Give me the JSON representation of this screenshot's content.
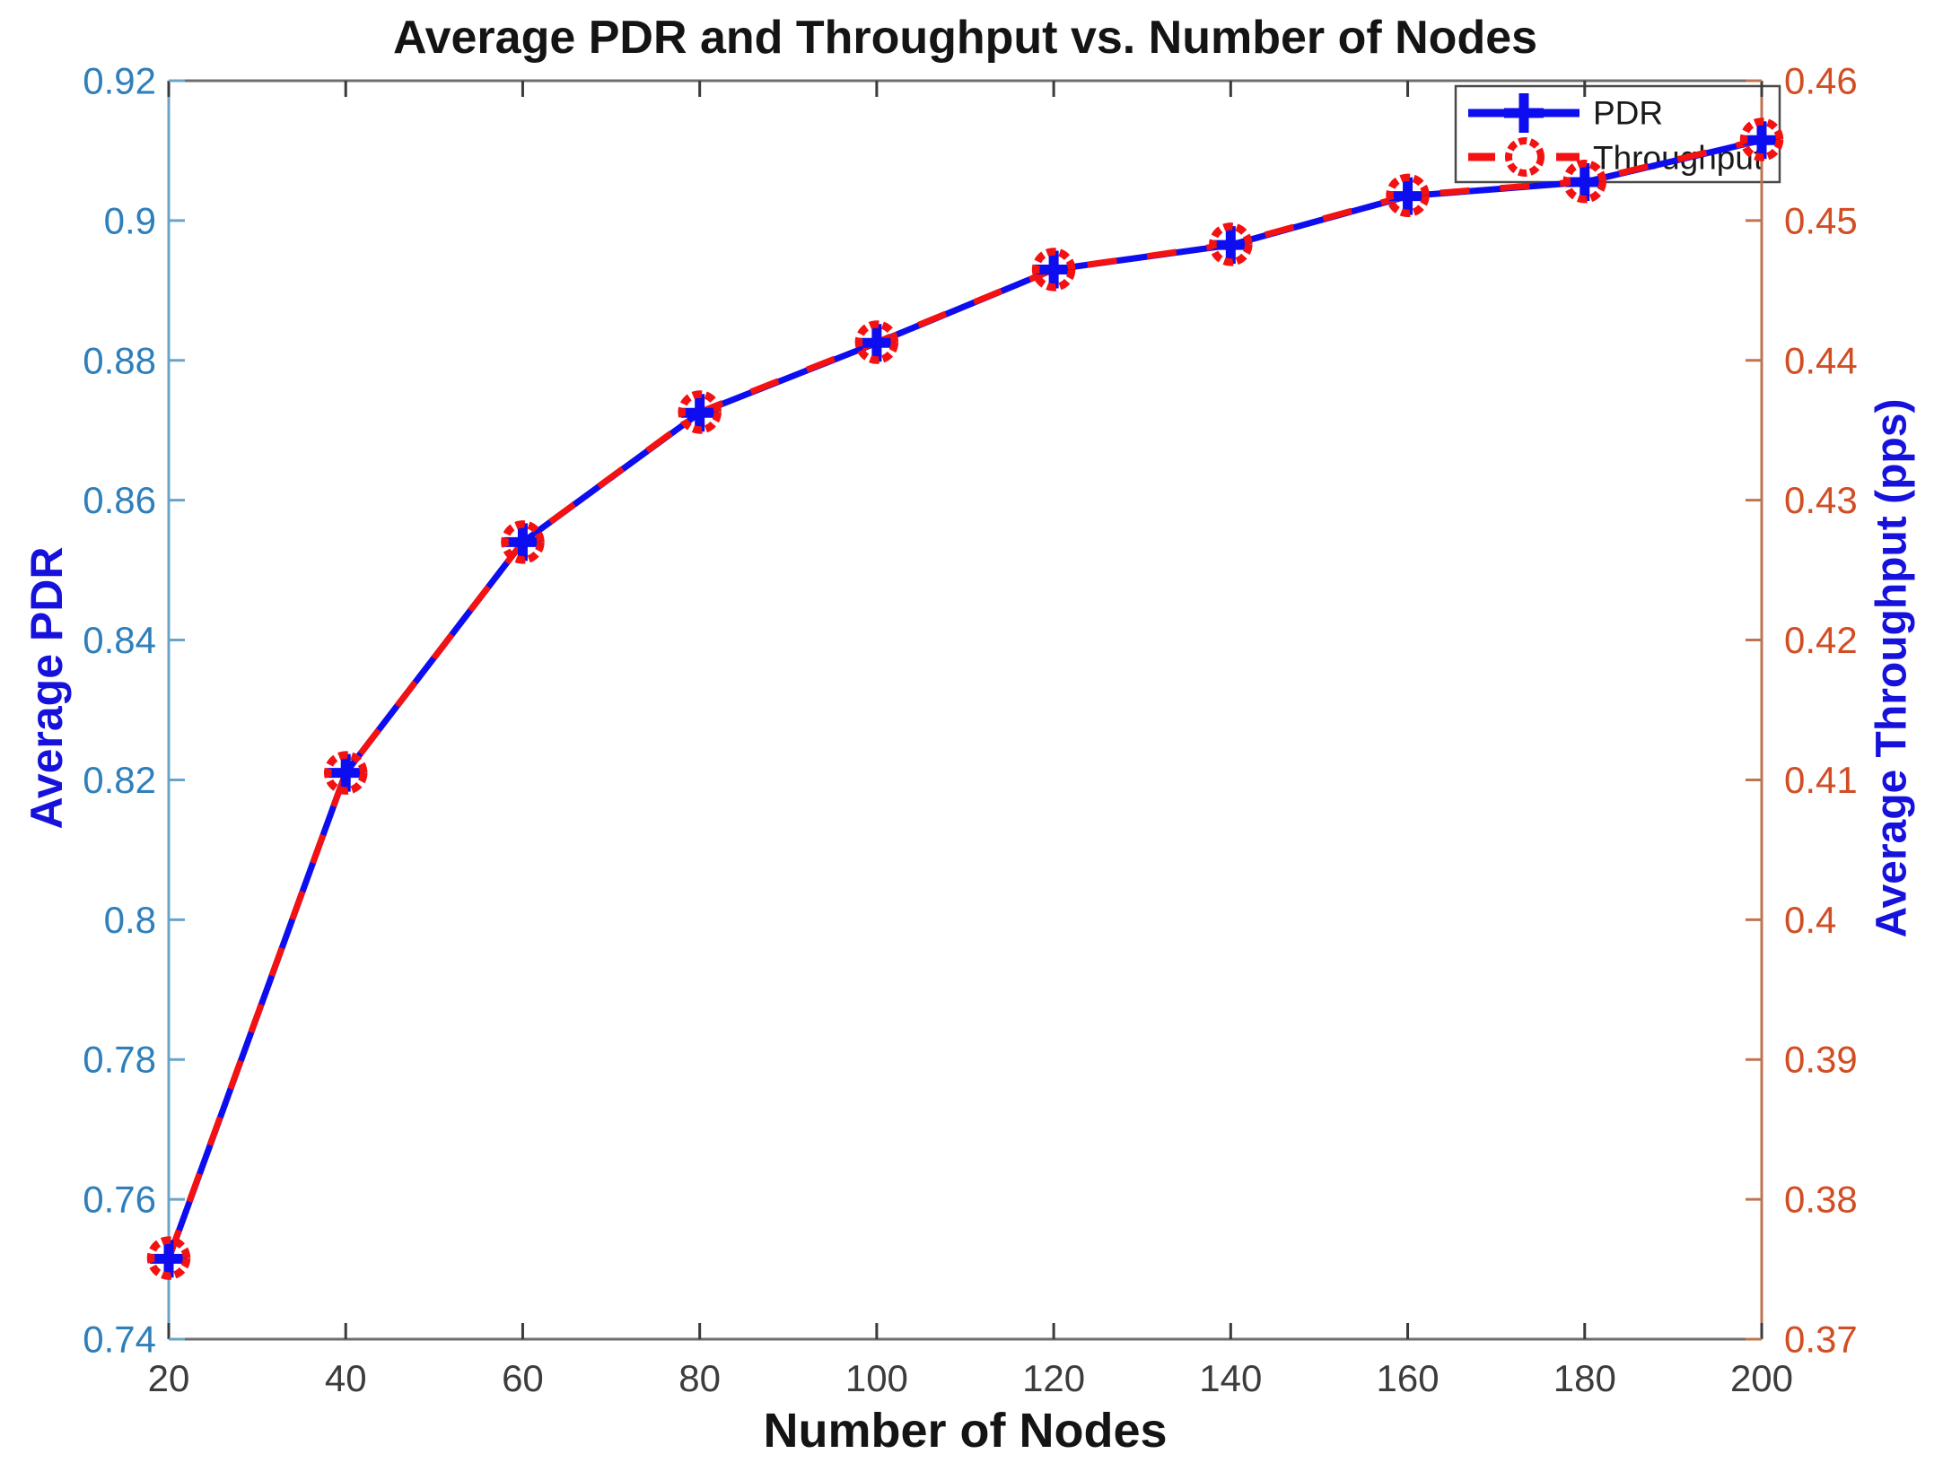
{
  "chart_data": {
    "type": "line",
    "title": "Average PDR and Throughput vs. Number of Nodes",
    "xlabel": "Number of Nodes",
    "ylabel_left": "Average PDR",
    "ylabel_right": "Average Throughput (pps)",
    "x": [
      20,
      40,
      60,
      80,
      100,
      120,
      140,
      160,
      180,
      200
    ],
    "series": [
      {
        "name": "PDR",
        "axis": "left",
        "color": "#0d0df0",
        "line_style": "solid",
        "marker": "plus",
        "values": [
          0.7515,
          0.821,
          0.854,
          0.8725,
          0.8825,
          0.893,
          0.8965,
          0.9035,
          0.9055,
          0.9115
        ]
      },
      {
        "name": "Throughput",
        "axis": "right",
        "color": "#f31111",
        "line_style": "dashed",
        "marker": "circle",
        "values": [
          0.3758,
          0.4105,
          0.427,
          0.4363,
          0.4413,
          0.4465,
          0.4483,
          0.4518,
          0.4528,
          0.4558
        ]
      }
    ],
    "x_axis": {
      "min": 20,
      "max": 200,
      "tick_values": [
        20,
        40,
        60,
        80,
        100,
        120,
        140,
        160,
        180,
        200
      ],
      "tick_labels": [
        "20",
        "40",
        "60",
        "80",
        "100",
        "120",
        "140",
        "160",
        "180",
        "200"
      ]
    },
    "left_axis": {
      "min": 0.74,
      "max": 0.92,
      "tick_values": [
        0.74,
        0.76,
        0.78,
        0.8,
        0.82,
        0.84,
        0.86,
        0.88,
        0.9,
        0.92
      ],
      "tick_labels": [
        "0.74",
        "0.76",
        "0.78",
        "0.8",
        "0.82",
        "0.84",
        "0.86",
        "0.88",
        "0.9",
        "0.92"
      ]
    },
    "right_axis": {
      "min": 0.37,
      "max": 0.46,
      "tick_values": [
        0.37,
        0.38,
        0.39,
        0.4,
        0.41,
        0.42,
        0.43,
        0.44,
        0.45,
        0.46
      ],
      "tick_labels": [
        "0.37",
        "0.38",
        "0.39",
        "0.4",
        "0.41",
        "0.42",
        "0.43",
        "0.44",
        "0.45",
        "0.46"
      ]
    },
    "legend": {
      "position": "top-right",
      "entries": [
        "PDR",
        "Throughput"
      ]
    },
    "grid": false
  },
  "colors": {
    "background": "#ffffff",
    "pdr_blue": "#0d0df0",
    "throughput_red": "#f31111",
    "axis_label_blue": "#1612dc",
    "title_text": "#141414",
    "left_axis_line": "#6ba3c8",
    "left_tick_text": "#2e7fba",
    "right_axis_line": "#c07350",
    "right_tick_text": "#d14e24",
    "box_gray": "#6e6e6e",
    "tick_dark": "#3a3a3a",
    "x_tick_text": "#3c3c3c",
    "legend_border": "#494949",
    "legend_text": "#1a1a1a"
  }
}
